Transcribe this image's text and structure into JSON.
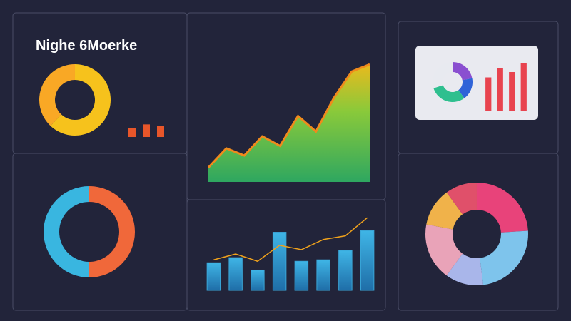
{
  "chart_data": [
    {
      "type": "donut",
      "title": "Nighe 6Moerke",
      "values": [
        62,
        38
      ],
      "colors": [
        "#f6c21c",
        "#f9a825"
      ]
    },
    {
      "type": "bar",
      "values": [
        30,
        42,
        38
      ],
      "color": "#e8562a",
      "ylim": [
        0,
        100
      ]
    },
    {
      "type": "area",
      "values": [
        12,
        28,
        22,
        38,
        30,
        55,
        42,
        70,
        92,
        98
      ],
      "color": "#7ccf3a",
      "line_color": "#f08a1c",
      "ylim": [
        0,
        110
      ]
    },
    {
      "type": "donut",
      "values": [
        22,
        18,
        30,
        30
      ],
      "colors": [
        "#8a4fd0",
        "#2f63d8",
        "#2fbf8f",
        "#e8eaf0"
      ]
    },
    {
      "type": "bar",
      "values": [
        62,
        80,
        72,
        88
      ],
      "color": "#e8434f",
      "ylim": [
        0,
        100
      ]
    },
    {
      "type": "donut",
      "values": [
        50,
        50
      ],
      "colors": [
        "#f0683a",
        "#39b6e0"
      ]
    },
    {
      "type": "combo",
      "ylim": [
        0,
        110
      ],
      "series": [
        {
          "color": "#3aa6d8",
          "values": [
            38,
            45,
            28,
            80,
            40,
            42,
            55,
            82
          ]
        },
        {
          "color": "#f0a21c",
          "values": [
            42,
            50,
            40,
            62,
            56,
            70,
            75,
            100
          ]
        }
      ]
    },
    {
      "type": "donut",
      "values": [
        24,
        24,
        12,
        18,
        12,
        10
      ],
      "colors": [
        "#e8437a",
        "#7ec4ec",
        "#a9b6ea",
        "#e9a3b8",
        "#f0b24a",
        "#e0506a"
      ]
    }
  ]
}
